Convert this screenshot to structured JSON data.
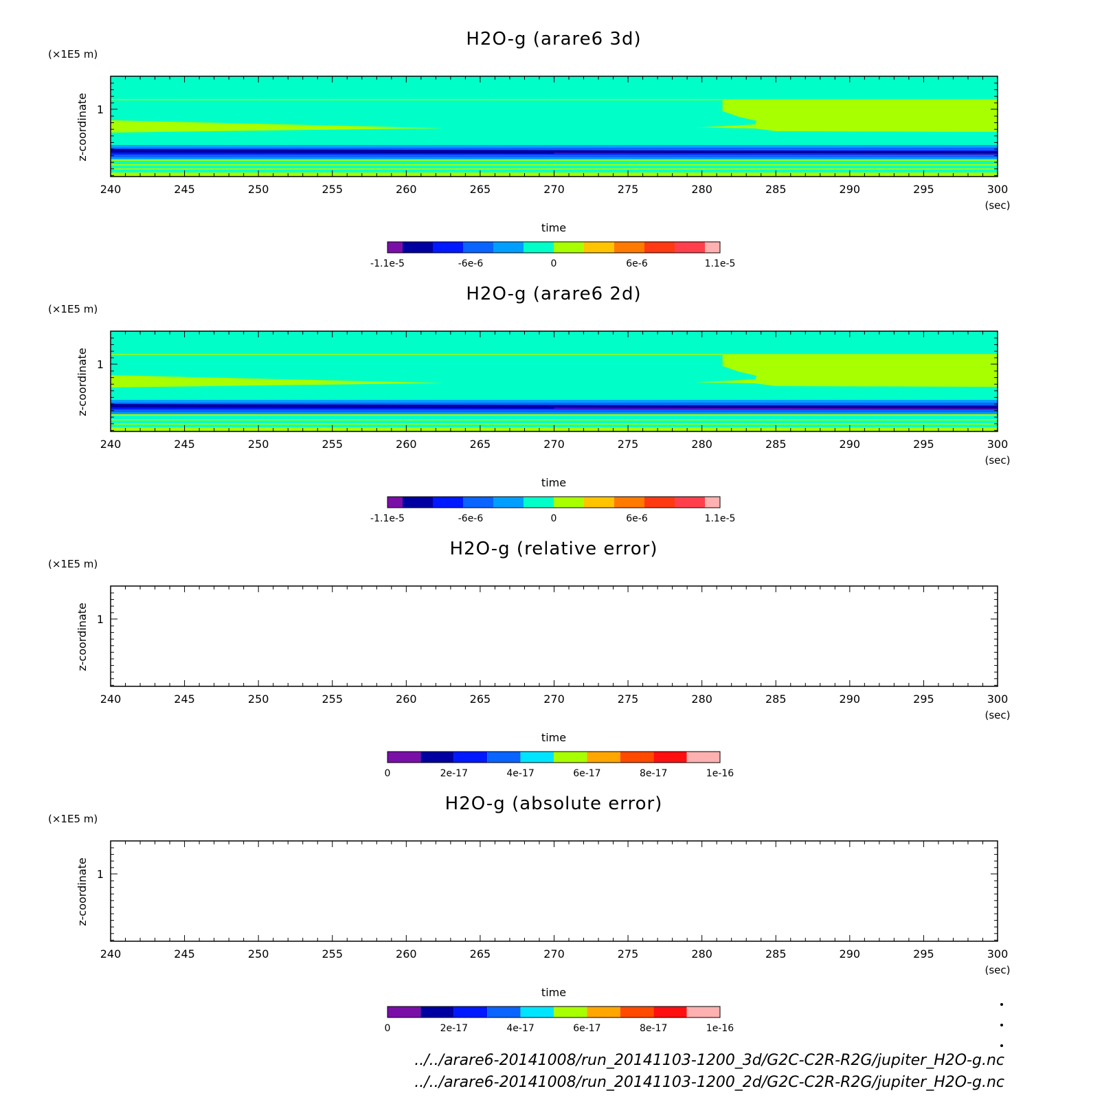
{
  "colors": {
    "diverging": [
      "#7a0fa8",
      "#0000a0",
      "#0019ff",
      "#0a64ff",
      "#009fff",
      "#00ffc8",
      "#a8ff00",
      "#ffc400",
      "#ff7a00",
      "#ff3a12",
      "#ff404c",
      "#ffb0b0"
    ],
    "sequential": [
      "#7a0fa8",
      "#0000a0",
      "#0019ff",
      "#0a64ff",
      "#00e5ff",
      "#a8ff00",
      "#ffa600",
      "#ff4a00",
      "#ff1010",
      "#ffb0b0"
    ]
  },
  "chart_data": [
    {
      "type": "heatmap",
      "title": "H2O-g (arare6 3d)",
      "xlabel": "time",
      "xunit": "(sec)",
      "ylabel": "z-coordinate",
      "yunit": "(×1E5 m)",
      "xticks": [
        "240",
        "245",
        "250",
        "255",
        "260",
        "265",
        "270",
        "275",
        "280",
        "285",
        "290",
        "295",
        "300"
      ],
      "yticks": [
        "1"
      ],
      "xlim": [
        240,
        300
      ],
      "filled": true,
      "colorbar": {
        "palette": "diverging",
        "labels": [
          "-1.1e-5",
          "-6e-6",
          "0",
          "6e-6",
          "1.1e-5"
        ]
      }
    },
    {
      "type": "heatmap",
      "title": "H2O-g (arare6 2d)",
      "xlabel": "time",
      "xunit": "(sec)",
      "ylabel": "z-coordinate",
      "yunit": "(×1E5 m)",
      "xticks": [
        "240",
        "245",
        "250",
        "255",
        "260",
        "265",
        "270",
        "275",
        "280",
        "285",
        "290",
        "295",
        "300"
      ],
      "yticks": [
        "1"
      ],
      "xlim": [
        240,
        300
      ],
      "filled": true,
      "colorbar": {
        "palette": "diverging",
        "labels": [
          "-1.1e-5",
          "-6e-6",
          "0",
          "6e-6",
          "1.1e-5"
        ]
      }
    },
    {
      "type": "heatmap",
      "title": "H2O-g (relative error)",
      "xlabel": "time",
      "xunit": "(sec)",
      "ylabel": "z-coordinate",
      "yunit": "(×1E5 m)",
      "xticks": [
        "240",
        "245",
        "250",
        "255",
        "260",
        "265",
        "270",
        "275",
        "280",
        "285",
        "290",
        "295",
        "300"
      ],
      "yticks": [
        "1"
      ],
      "xlim": [
        240,
        300
      ],
      "filled": false,
      "colorbar": {
        "palette": "sequential",
        "labels": [
          "0",
          "2e-17",
          "4e-17",
          "6e-17",
          "8e-17",
          "1e-16"
        ]
      }
    },
    {
      "type": "heatmap",
      "title": "H2O-g (absolute error)",
      "xlabel": "time",
      "xunit": "(sec)",
      "ylabel": "z-coordinate",
      "yunit": "(×1E5 m)",
      "xticks": [
        "240",
        "245",
        "250",
        "255",
        "260",
        "265",
        "270",
        "275",
        "280",
        "285",
        "290",
        "295",
        "300"
      ],
      "yticks": [
        "1"
      ],
      "xlim": [
        240,
        300
      ],
      "filled": false,
      "colorbar": {
        "palette": "sequential",
        "labels": [
          "0",
          "2e-17",
          "4e-17",
          "6e-17",
          "8e-17",
          "1e-16"
        ]
      }
    }
  ],
  "footer": {
    "file_3d": "../../arare6-20141008/run_20141103-1200_3d/G2C-C2R-R2G/jupiter_H2O-g.nc",
    "file_2d": "../../arare6-20141008/run_20141103-1200_2d/G2C-C2R-R2G/jupiter_H2O-g.nc"
  }
}
